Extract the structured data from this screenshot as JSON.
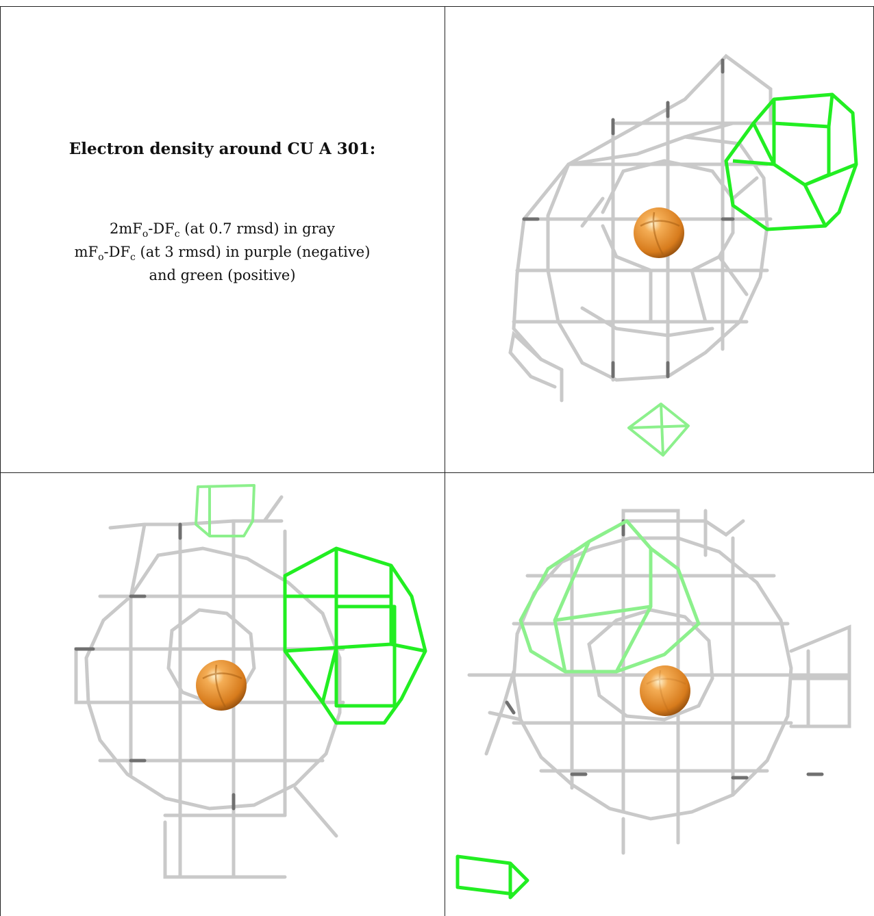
{
  "caption": {
    "title": "Electron density around CU A 301:",
    "line1_prefix": "2mF",
    "line1_sub1": "o",
    "line1_mid": "-DF",
    "line1_sub2": "c",
    "line1_suffix": " (at 0.7 rmsd) in gray",
    "line2_prefix": "mF",
    "line2_sub1": "o",
    "line2_mid": "-DF",
    "line2_sub2": "c",
    "line2_suffix": " (at 3 rmsd) in purple (negative)",
    "line3": "and green (positive)"
  },
  "colors": {
    "gray_mesh": "#c4c4c4",
    "gray_dark": "#6a6a6a",
    "green_mesh": "#22ee22",
    "green_light": "#8cf08c",
    "atom": "#e8902a"
  },
  "panels": [
    {
      "name": "view-1",
      "atom": "copper-atom"
    },
    {
      "name": "view-2",
      "atom": "copper-atom"
    },
    {
      "name": "view-3",
      "atom": "copper-atom"
    }
  ]
}
